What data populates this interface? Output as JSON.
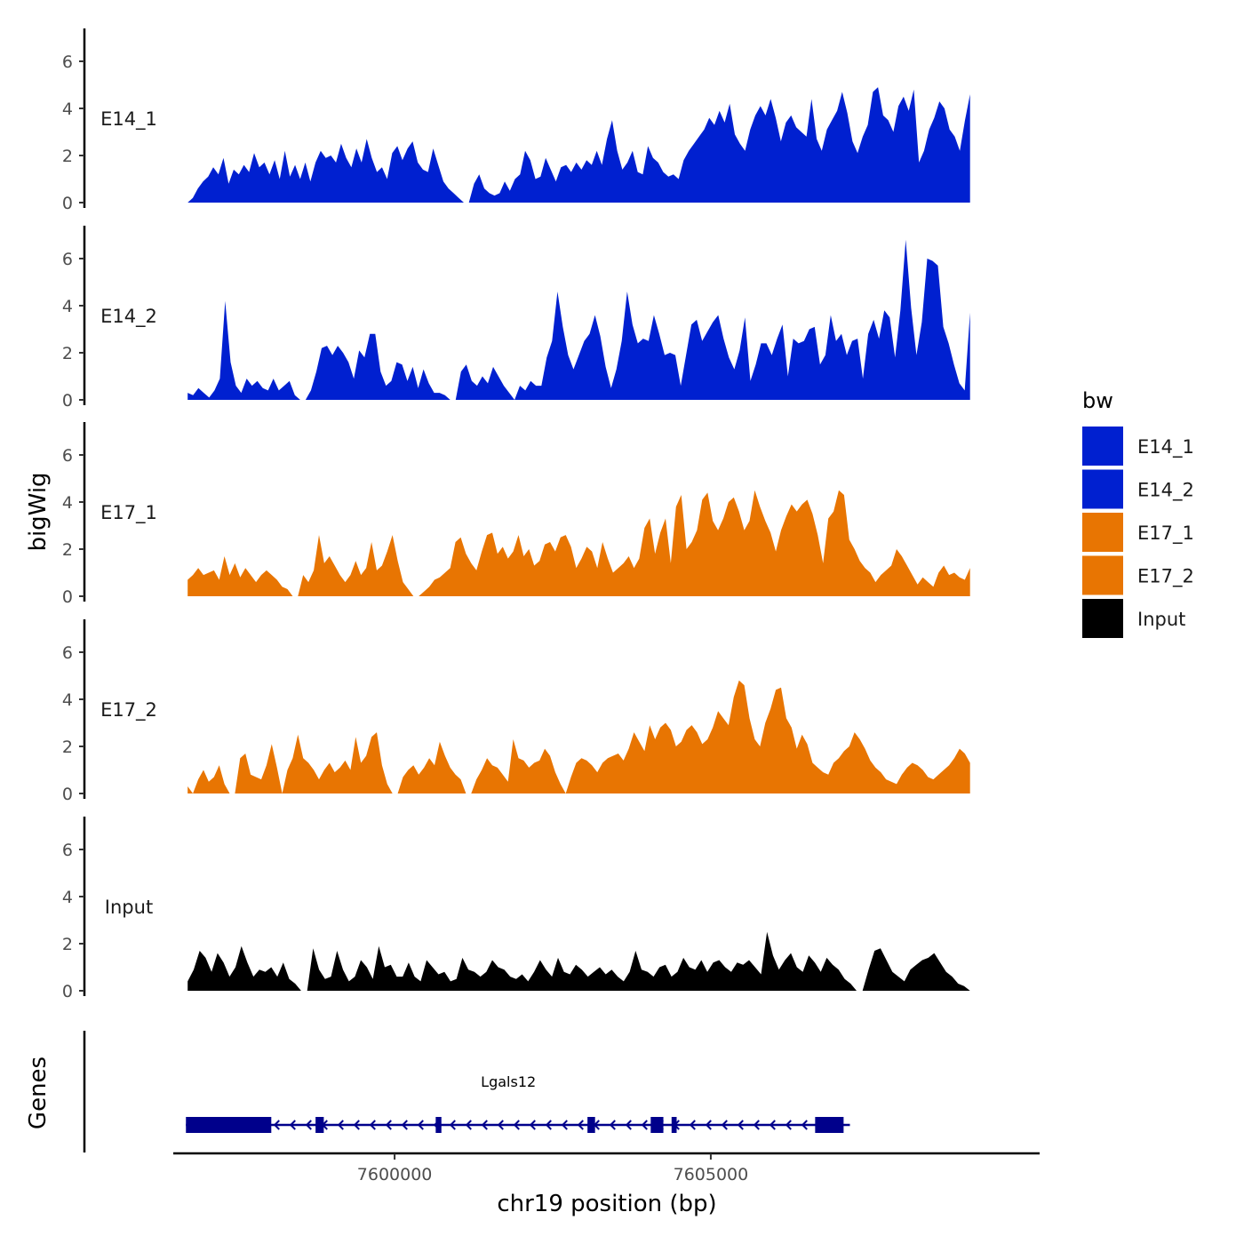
{
  "chart_data": {
    "type": "area",
    "ylabel": "bigWig",
    "xlabel": "chr19 position (bp)",
    "ylim": [
      0,
      7
    ],
    "xlim": [
      7596500,
      7610200
    ],
    "data_x_range": [
      7596700,
      7609100
    ],
    "yticks": [
      "0",
      "2",
      "4",
      "6"
    ],
    "xticks": [
      {
        "value": 7600000,
        "label": "7600000"
      },
      {
        "value": 7605000,
        "label": "7605000"
      }
    ],
    "legend": {
      "title": "bw",
      "entries": [
        {
          "label": "E14_1",
          "color": "#0020d0"
        },
        {
          "label": "E14_2",
          "color": "#0020d0"
        },
        {
          "label": "E17_1",
          "color": "#e87502"
        },
        {
          "label": "E17_2",
          "color": "#e87502"
        },
        {
          "label": "Input",
          "color": "#000000"
        }
      ]
    },
    "series": [
      {
        "name": "E14_1",
        "color": "#0020d0",
        "values": [
          0.0,
          0.2,
          0.6,
          0.9,
          1.1,
          1.5,
          1.2,
          1.9,
          0.8,
          1.4,
          1.2,
          1.6,
          1.3,
          2.1,
          1.5,
          1.7,
          1.2,
          1.8,
          1.0,
          2.2,
          1.1,
          1.6,
          1.0,
          1.7,
          0.9,
          1.7,
          2.2,
          1.9,
          2.0,
          1.7,
          2.5,
          1.9,
          1.5,
          2.3,
          1.7,
          2.7,
          1.9,
          1.3,
          1.5,
          1.0,
          2.1,
          2.4,
          1.8,
          2.3,
          2.6,
          1.7,
          1.4,
          1.3,
          2.3,
          1.6,
          0.9,
          0.6,
          0.4,
          0.2,
          0.0,
          0.0,
          0.8,
          1.2,
          0.6,
          0.4,
          0.3,
          0.4,
          0.9,
          0.5,
          1.0,
          1.2,
          2.2,
          1.8,
          1.0,
          1.1,
          1.9,
          1.4,
          0.9,
          1.5,
          1.6,
          1.3,
          1.7,
          1.4,
          1.8,
          1.6,
          2.2,
          1.6,
          2.7,
          3.5,
          2.2,
          1.4,
          1.7,
          2.2,
          1.3,
          1.2,
          2.4,
          1.9,
          1.7,
          1.3,
          1.1,
          1.2,
          1.0,
          1.8,
          2.2,
          2.5,
          2.8,
          3.1,
          3.6,
          3.3,
          3.9,
          3.4,
          4.2,
          2.9,
          2.5,
          2.2,
          3.1,
          3.7,
          4.1,
          3.7,
          4.4,
          3.6,
          2.6,
          3.4,
          3.7,
          3.2,
          3.0,
          2.8,
          4.4,
          2.7,
          2.2,
          3.1,
          3.5,
          3.9,
          4.7,
          3.8,
          2.6,
          2.1,
          2.8,
          3.3,
          4.7,
          4.9,
          3.7,
          3.5,
          3.0,
          4.1,
          4.5,
          3.9,
          4.8,
          1.7,
          2.2,
          3.1,
          3.6,
          4.3,
          4.0,
          3.1,
          2.8,
          2.2,
          3.5,
          4.6
        ]
      },
      {
        "name": "E14_2",
        "color": "#0020d0",
        "values": [
          0.3,
          0.2,
          0.5,
          0.3,
          0.1,
          0.4,
          0.9,
          4.2,
          1.6,
          0.6,
          0.3,
          0.9,
          0.6,
          0.8,
          0.5,
          0.4,
          0.9,
          0.4,
          0.6,
          0.8,
          0.2,
          0.0,
          0.0,
          0.4,
          1.2,
          2.2,
          2.3,
          1.9,
          2.3,
          2.0,
          1.6,
          0.9,
          2.1,
          1.8,
          2.8,
          2.8,
          1.2,
          0.6,
          0.8,
          1.6,
          1.5,
          0.8,
          1.4,
          0.5,
          1.3,
          0.7,
          0.3,
          0.3,
          0.2,
          0.0,
          0.0,
          1.2,
          1.5,
          0.8,
          0.6,
          1.0,
          0.7,
          1.4,
          1.0,
          0.6,
          0.3,
          0.0,
          0.6,
          0.4,
          0.8,
          0.6,
          0.6,
          1.8,
          2.5,
          4.6,
          3.1,
          1.9,
          1.3,
          1.9,
          2.5,
          2.8,
          3.6,
          2.7,
          1.4,
          0.5,
          1.3,
          2.5,
          4.6,
          3.2,
          2.4,
          2.6,
          2.5,
          3.6,
          2.8,
          1.9,
          2.0,
          1.9,
          0.6,
          1.9,
          3.2,
          3.4,
          2.5,
          2.9,
          3.3,
          3.6,
          2.6,
          1.8,
          1.3,
          2.1,
          3.5,
          0.8,
          1.5,
          2.4,
          2.4,
          1.9,
          2.6,
          3.2,
          1.0,
          2.6,
          2.4,
          2.5,
          3.0,
          3.1,
          1.5,
          1.9,
          3.6,
          2.5,
          2.8,
          1.9,
          2.5,
          2.6,
          0.9,
          2.8,
          3.4,
          2.6,
          3.8,
          3.5,
          1.8,
          3.8,
          6.8,
          3.9,
          1.9,
          3.3,
          6.0,
          5.9,
          5.7,
          3.1,
          2.4,
          1.5,
          0.7,
          0.4,
          3.7
        ]
      },
      {
        "name": "E17_1",
        "color": "#e87502",
        "values": [
          0.7,
          0.9,
          1.2,
          0.9,
          1.0,
          1.1,
          0.7,
          1.7,
          0.9,
          1.4,
          0.8,
          1.2,
          0.9,
          0.6,
          0.9,
          1.1,
          0.9,
          0.7,
          0.4,
          0.3,
          0.0,
          0.0,
          0.9,
          0.6,
          1.1,
          2.6,
          1.4,
          1.7,
          1.3,
          0.9,
          0.6,
          0.9,
          1.5,
          0.9,
          1.2,
          2.3,
          1.1,
          1.3,
          1.9,
          2.6,
          1.5,
          0.6,
          0.3,
          0.0,
          0.0,
          0.2,
          0.4,
          0.7,
          0.8,
          1.0,
          1.2,
          2.3,
          2.5,
          1.8,
          1.4,
          1.1,
          1.9,
          2.6,
          2.7,
          1.8,
          2.1,
          1.6,
          1.9,
          2.6,
          1.7,
          2.0,
          1.3,
          1.5,
          2.2,
          2.3,
          1.9,
          2.5,
          2.6,
          2.1,
          1.2,
          1.6,
          2.1,
          1.9,
          1.2,
          2.3,
          1.6,
          1.0,
          1.2,
          1.4,
          1.7,
          1.2,
          1.6,
          2.9,
          3.3,
          1.8,
          2.7,
          3.3,
          1.4,
          3.8,
          4.3,
          2.0,
          2.3,
          2.8,
          4.1,
          4.4,
          3.2,
          2.8,
          3.3,
          4.0,
          4.2,
          3.6,
          2.8,
          3.2,
          4.5,
          3.8,
          3.2,
          2.7,
          1.9,
          2.8,
          3.4,
          3.9,
          3.6,
          3.9,
          4.1,
          3.5,
          2.6,
          1.4,
          3.3,
          3.6,
          4.5,
          4.3,
          2.4,
          2.0,
          1.5,
          1.2,
          1.0,
          0.6,
          0.9,
          1.1,
          1.3,
          2.0,
          1.7,
          1.3,
          0.9,
          0.5,
          0.8,
          0.6,
          0.4,
          1.0,
          1.3,
          0.9,
          1.0,
          0.8,
          0.7,
          1.2
        ]
      },
      {
        "name": "E17_2",
        "color": "#e87502",
        "values": [
          0.3,
          0.0,
          0.6,
          1.0,
          0.5,
          0.7,
          1.2,
          0.4,
          0.0,
          0.0,
          1.5,
          1.7,
          0.8,
          0.7,
          0.6,
          1.2,
          2.1,
          1.1,
          0.0,
          1.0,
          1.5,
          2.5,
          1.5,
          1.3,
          1.0,
          0.6,
          1.0,
          1.3,
          0.9,
          1.1,
          1.4,
          1.0,
          2.4,
          1.3,
          1.6,
          2.4,
          2.6,
          1.2,
          0.4,
          0.0,
          0.0,
          0.7,
          1.0,
          1.2,
          0.8,
          1.1,
          1.5,
          1.2,
          2.2,
          1.6,
          1.1,
          0.8,
          0.6,
          0.0,
          0.0,
          0.6,
          1.0,
          1.5,
          1.2,
          1.1,
          0.8,
          0.5,
          2.3,
          1.5,
          1.4,
          1.1,
          1.3,
          1.4,
          1.9,
          1.6,
          0.9,
          0.4,
          0.0,
          0.7,
          1.3,
          1.5,
          1.4,
          1.2,
          0.9,
          1.3,
          1.5,
          1.6,
          1.7,
          1.4,
          1.9,
          2.6,
          2.2,
          1.8,
          2.9,
          2.3,
          2.8,
          3.0,
          2.7,
          2.0,
          2.2,
          2.7,
          2.9,
          2.6,
          2.1,
          2.3,
          2.8,
          3.5,
          3.2,
          2.9,
          4.1,
          4.8,
          4.6,
          3.2,
          2.3,
          2.0,
          3.0,
          3.6,
          4.4,
          4.5,
          3.2,
          2.8,
          1.9,
          2.5,
          2.1,
          1.3,
          1.1,
          0.9,
          0.8,
          1.3,
          1.5,
          1.8,
          2.0,
          2.6,
          2.3,
          1.9,
          1.4,
          1.1,
          0.9,
          0.6,
          0.5,
          0.4,
          0.8,
          1.1,
          1.3,
          1.2,
          1.0,
          0.7,
          0.6,
          0.8,
          1.0,
          1.2,
          1.5,
          1.9,
          1.7,
          1.3
        ]
      },
      {
        "name": "Input",
        "color": "#000000",
        "values": [
          0.4,
          0.9,
          1.7,
          1.4,
          0.8,
          1.6,
          1.2,
          0.6,
          1.0,
          1.9,
          1.2,
          0.6,
          0.9,
          0.8,
          1.0,
          0.6,
          1.2,
          0.5,
          0.3,
          0.0,
          0.0,
          1.8,
          0.9,
          0.5,
          0.6,
          1.7,
          0.9,
          0.4,
          0.6,
          1.3,
          1.0,
          0.5,
          1.9,
          1.0,
          1.1,
          0.6,
          0.6,
          1.2,
          0.6,
          0.4,
          1.3,
          1.0,
          0.7,
          0.8,
          0.4,
          0.5,
          1.4,
          0.9,
          0.8,
          0.6,
          0.8,
          1.3,
          1.0,
          0.9,
          0.6,
          0.5,
          0.7,
          0.4,
          0.8,
          1.3,
          0.9,
          0.6,
          1.4,
          0.8,
          0.7,
          1.1,
          0.9,
          0.6,
          0.8,
          1.0,
          0.7,
          0.9,
          0.6,
          0.4,
          0.8,
          1.7,
          0.9,
          0.8,
          0.6,
          1.0,
          1.1,
          0.6,
          0.8,
          1.4,
          1.0,
          0.9,
          1.3,
          0.8,
          1.2,
          1.3,
          1.0,
          0.8,
          1.2,
          1.1,
          1.3,
          1.0,
          0.7,
          2.5,
          1.5,
          0.9,
          1.3,
          1.6,
          1.0,
          0.8,
          1.5,
          1.2,
          0.8,
          1.4,
          1.1,
          0.9,
          0.5,
          0.3,
          0.0,
          0.0,
          0.9,
          1.7,
          1.8,
          1.3,
          0.8,
          0.6,
          0.4,
          0.9,
          1.1,
          1.3,
          1.4,
          1.6,
          1.2,
          0.8,
          0.6,
          0.3,
          0.2,
          0.0
        ]
      }
    ],
    "genes": {
      "ylabel": "Genes",
      "items": [
        {
          "name": "Lgals12",
          "strand": "-",
          "start": 7596700,
          "end": 7607200,
          "exons": [
            [
              7596700,
              7598050
            ],
            [
              7598750,
              7598880
            ],
            [
              7600650,
              7600740
            ],
            [
              7603050,
              7603170
            ],
            [
              7604050,
              7604250
            ],
            [
              7604380,
              7604460
            ],
            [
              7606650,
              7607100
            ]
          ]
        }
      ]
    }
  }
}
